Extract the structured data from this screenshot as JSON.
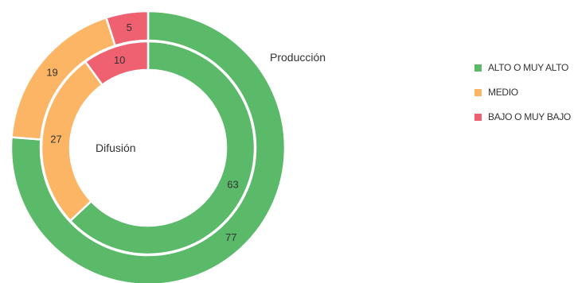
{
  "chart_data": {
    "type": "pie",
    "subtype": "multi-ring donut",
    "categories": [
      "ALTO O MUY ALTO",
      "MEDIO",
      "BAJO O MUY BAJO"
    ],
    "colors": [
      "#5bb96a",
      "#fbb564",
      "#ef6070"
    ],
    "series": [
      {
        "name": "Producción",
        "values": [
          77,
          19,
          5
        ]
      },
      {
        "name": "Difusión",
        "values": [
          63,
          27,
          10
        ]
      }
    ],
    "legend_position": "right"
  }
}
